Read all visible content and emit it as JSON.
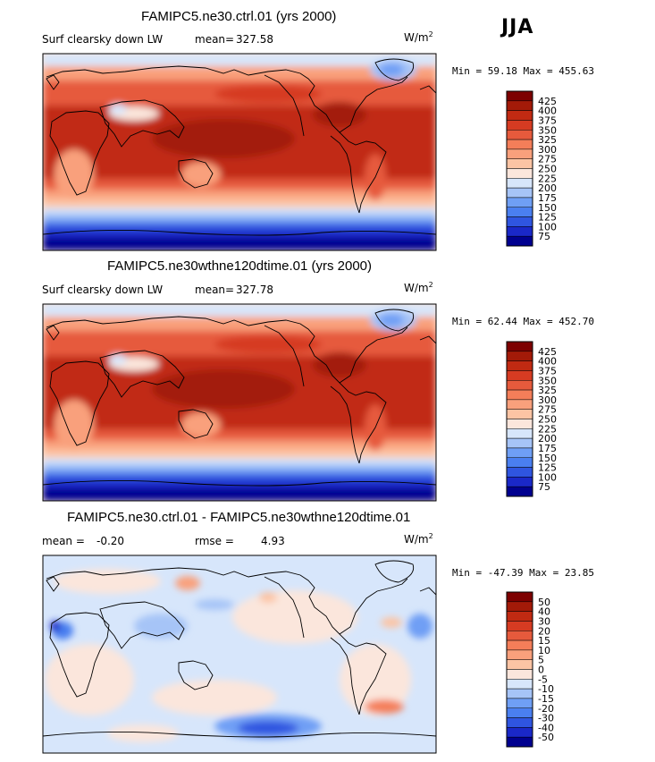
{
  "season": "JJA",
  "palette_main": [
    "#00008f",
    "#1a28c8",
    "#2f55e0",
    "#4a7ff0",
    "#6f9ff5",
    "#a6c4f7",
    "#d7e6fb",
    "#fbe6dc",
    "#fcc4a4",
    "#f9a07c",
    "#f47e59",
    "#e65a3c",
    "#d63b22",
    "#c12a12",
    "#a31a08",
    "#7d0000"
  ],
  "palette_diff": [
    "#00008f",
    "#1a28c8",
    "#2f55e0",
    "#4a7ff0",
    "#6f9ff5",
    "#a6c4f7",
    "#d7e6fb",
    "#fbe6dc",
    "#fcc4a4",
    "#f9a07c",
    "#f47e59",
    "#e65a3c",
    "#d63b22",
    "#c12a12",
    "#a31a08",
    "#7d0000"
  ],
  "panels": [
    {
      "title": "FAMIPC5.ne30.ctrl.01 (yrs 2000)",
      "variable": "Surf clearsky down LW",
      "mean_label": "mean=",
      "mean_value": "327.58",
      "units": "W/m",
      "units_sup": "2",
      "minmax": "Min =  59.18 Max = 455.63",
      "levels": [
        "75",
        "100",
        "125",
        "150",
        "175",
        "200",
        "225",
        "250",
        "275",
        "300",
        "325",
        "350",
        "375",
        "400",
        "425"
      ]
    },
    {
      "title": "FAMIPC5.ne30wthne120dtime.01 (yrs 2000)",
      "variable": "Surf clearsky down LW",
      "mean_label": "mean=",
      "mean_value": "327.78",
      "units": "W/m",
      "units_sup": "2",
      "minmax": "Min =  62.44 Max = 452.70",
      "levels": [
        "75",
        "100",
        "125",
        "150",
        "175",
        "200",
        "225",
        "250",
        "275",
        "300",
        "325",
        "350",
        "375",
        "400",
        "425"
      ]
    },
    {
      "title": "FAMIPC5.ne30.ctrl.01 - FAMIPC5.ne30wthne120dtime.01",
      "mean_label": "mean =",
      "mean_value": "-0.20",
      "rmse_label": "rmse =",
      "rmse_value": "4.93",
      "units": "W/m",
      "units_sup": "2",
      "minmax": "Min = -47.39 Max =  23.85",
      "levels": [
        "-50",
        "-40",
        "-30",
        "-20",
        "-15",
        "-10",
        "-5",
        "0",
        "5",
        "10",
        "15",
        "20",
        "30",
        "40",
        "50"
      ]
    }
  ]
}
